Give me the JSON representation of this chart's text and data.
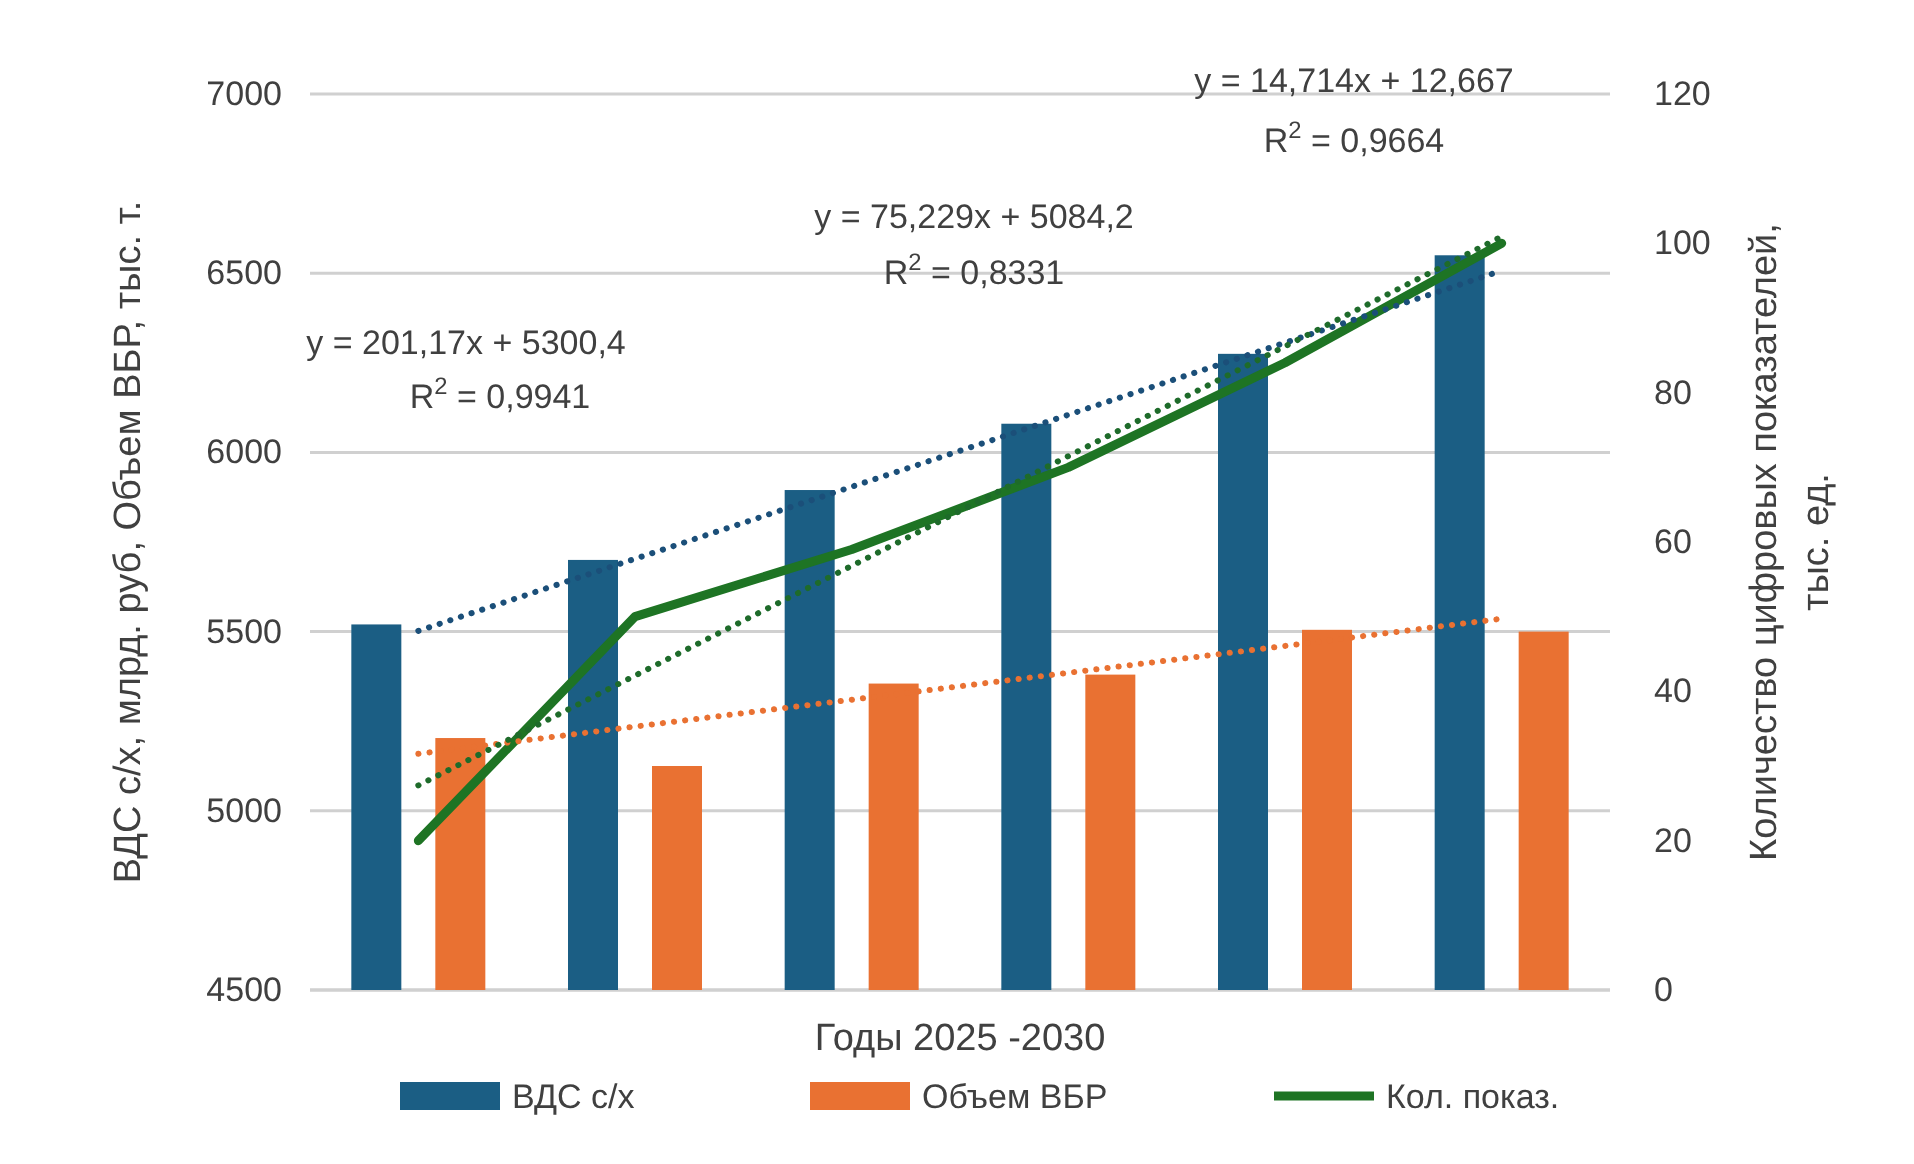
{
  "chart_data": {
    "type": "bar",
    "xlabel": "Годы 2025 -2030",
    "ylabel": "ВДС с/х, млрд. руб, Объем ВБР, тыс. т.",
    "y2label": "Количество цифровых показателей, тыс. ед.",
    "categories": [
      null,
      null,
      null,
      null,
      null,
      null
    ],
    "series": [
      {
        "name": "ВДС с/х",
        "color": "#1b5e84",
        "values": [
          5520,
          5700,
          5895,
          6080,
          6275,
          6550
        ]
      },
      {
        "name": "Объем ВБР",
        "color": "#e97132",
        "values": [
          5203,
          5125,
          5355,
          5380,
          5505,
          5500
        ]
      },
      {
        "name": "Кол. показ.",
        "type": "line",
        "axis": "y2",
        "color": "#1e7424",
        "line_style": "solid",
        "values": [
          20,
          50,
          59,
          70,
          84,
          100
        ]
      },
      {
        "type": "line",
        "color": "#1b4f79",
        "line_style": "dotted",
        "values": [
          5502,
          5703,
          5904,
          6105,
          6306,
          6507
        ]
      },
      {
        "type": "line",
        "color": "#e97132",
        "line_style": "dotted",
        "values": [
          5159,
          5235,
          5310,
          5385,
          5460,
          5536
        ]
      },
      {
        "type": "line",
        "axis": "y2",
        "color": "#1e6b2a",
        "line_style": "dotted",
        "values": [
          27.4,
          42.1,
          56.8,
          71.5,
          86.2,
          100.9
        ]
      }
    ],
    "ylim": [
      4500,
      7000
    ],
    "yticks": [
      4500,
      5000,
      5500,
      6000,
      6500,
      7000
    ],
    "y2lim": [
      0,
      120
    ],
    "y2ticks": [
      0,
      20,
      40,
      60,
      80,
      100,
      120
    ],
    "grid": "y",
    "legend": "bottom",
    "tick_labels": "y",
    "annotations": [
      "y = 201,17x + 5300,4",
      "R$^{2}$ = 0,9941",
      "y = 75,229x + 5084,2",
      "R$^{2}$ = 0,8331",
      "y = 14,714x + 12,667",
      "R$^{2}$ = 0,9664"
    ]
  }
}
